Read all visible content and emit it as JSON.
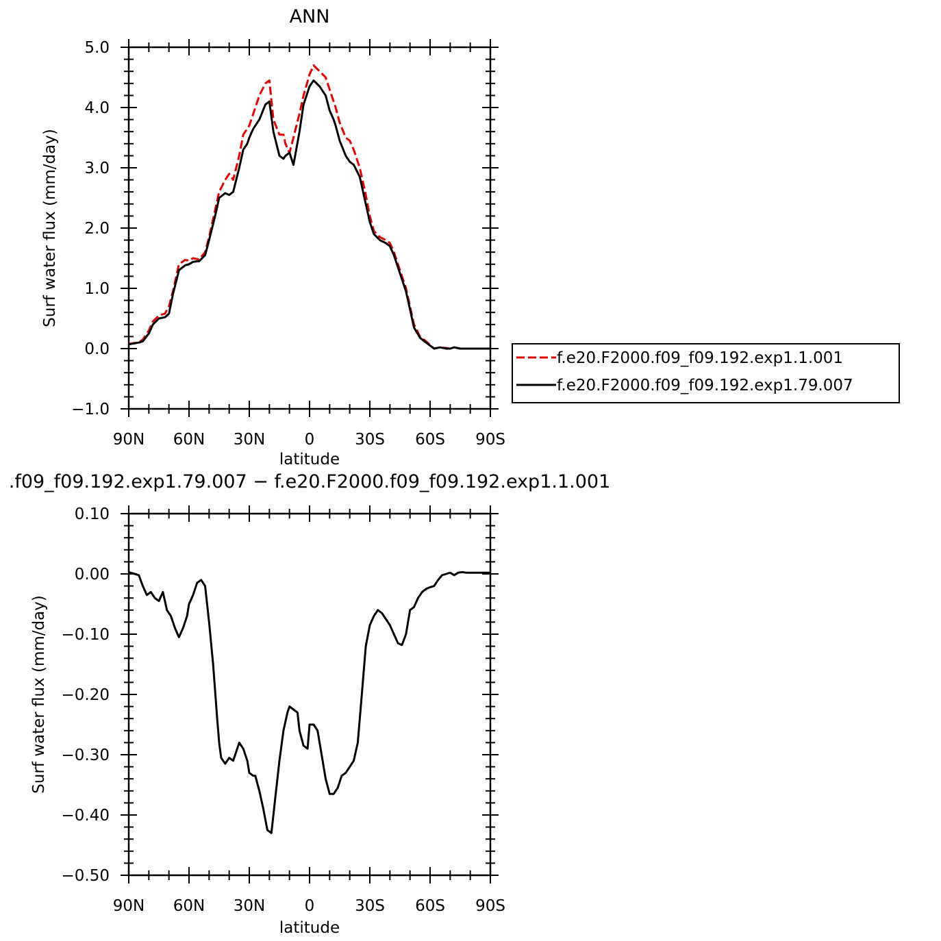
{
  "chart_data": [
    {
      "type": "line",
      "title": "ANN",
      "xlabel": "latitude",
      "ylabel": "Surf water flux (mm/day)",
      "xlim": [
        -90,
        90
      ],
      "ylim": [
        -1.0,
        5.0
      ],
      "x_tick_values": [
        -90,
        -60,
        -30,
        0,
        30,
        60,
        90
      ],
      "x_tick_labels": [
        "90N",
        "60N",
        "30N",
        "0",
        "30S",
        "60S",
        "90S"
      ],
      "y_tick_values": [
        -1.0,
        0.0,
        1.0,
        2.0,
        3.0,
        4.0,
        5.0
      ],
      "y_tick_labels": [
        "−1.0",
        "0.0",
        "1.0",
        "2.0",
        "3.0",
        "4.0",
        "5.0"
      ],
      "legend_position": "right",
      "series": [
        {
          "name": "f.e20.F2000.f09_f09.192.exp1.1.001",
          "color": "#e00000",
          "dash": "dashed",
          "x": [
            -90,
            -85,
            -83,
            -80,
            -78,
            -75,
            -72,
            -70,
            -68,
            -65,
            -62,
            -60,
            -58,
            -55,
            -52,
            -50,
            -47,
            -45,
            -42,
            -40,
            -38,
            -35,
            -33,
            -31,
            -30,
            -28,
            -25,
            -22,
            -20,
            -18,
            -15,
            -13,
            -12,
            -10,
            -8,
            -5,
            -3,
            0,
            2,
            5,
            8,
            10,
            12,
            13,
            15,
            18,
            20,
            22,
            25,
            28,
            30,
            32,
            35,
            38,
            40,
            42,
            45,
            48,
            50,
            52,
            55,
            58,
            60,
            62,
            65,
            68,
            70,
            72,
            75,
            78,
            80,
            82,
            85,
            88,
            90
          ],
          "y": [
            0.08,
            0.1,
            0.15,
            0.3,
            0.45,
            0.55,
            0.58,
            0.7,
            0.95,
            1.4,
            1.47,
            1.46,
            1.5,
            1.48,
            1.6,
            1.85,
            2.3,
            2.6,
            2.8,
            2.9,
            2.8,
            3.2,
            3.55,
            3.65,
            3.7,
            3.9,
            4.2,
            4.4,
            4.45,
            3.8,
            3.55,
            3.55,
            3.4,
            3.25,
            3.5,
            3.9,
            4.2,
            4.55,
            4.7,
            4.6,
            4.5,
            4.3,
            4.1,
            4.0,
            3.75,
            3.5,
            3.45,
            3.3,
            3.0,
            2.55,
            2.2,
            1.95,
            1.85,
            1.8,
            1.75,
            1.6,
            1.3,
            1.0,
            0.7,
            0.4,
            0.2,
            0.12,
            0.06,
            0.0,
            0.02,
            0.01,
            0.0,
            0.02,
            0.0,
            0.0,
            0.0,
            0.0,
            0.0,
            0.0,
            0.0
          ]
        },
        {
          "name": "f.e20.F2000.f09_f09.192.exp1.79.007",
          "color": "#000000",
          "dash": "solid",
          "x": [
            -90,
            -85,
            -83,
            -80,
            -78,
            -75,
            -72,
            -70,
            -68,
            -65,
            -62,
            -60,
            -58,
            -55,
            -52,
            -50,
            -47,
            -45,
            -42,
            -40,
            -38,
            -35,
            -33,
            -31,
            -30,
            -28,
            -25,
            -22,
            -20,
            -18,
            -15,
            -13,
            -12,
            -10,
            -8,
            -5,
            -3,
            0,
            2,
            5,
            8,
            10,
            12,
            13,
            15,
            18,
            20,
            22,
            25,
            28,
            30,
            32,
            35,
            38,
            40,
            42,
            45,
            48,
            50,
            52,
            55,
            58,
            60,
            62,
            65,
            68,
            70,
            72,
            75,
            78,
            80,
            82,
            85,
            88,
            90
          ],
          "y": [
            0.07,
            0.1,
            0.12,
            0.25,
            0.4,
            0.5,
            0.52,
            0.58,
            0.9,
            1.3,
            1.38,
            1.4,
            1.44,
            1.45,
            1.55,
            1.8,
            2.2,
            2.5,
            2.58,
            2.55,
            2.6,
            3.0,
            3.3,
            3.4,
            3.5,
            3.65,
            3.8,
            4.05,
            4.1,
            3.6,
            3.2,
            3.15,
            3.2,
            3.25,
            3.05,
            3.6,
            4.05,
            4.35,
            4.45,
            4.35,
            4.2,
            3.95,
            3.8,
            3.7,
            3.45,
            3.2,
            3.1,
            3.05,
            2.85,
            2.4,
            2.1,
            1.9,
            1.8,
            1.75,
            1.7,
            1.55,
            1.25,
            0.95,
            0.65,
            0.35,
            0.18,
            0.1,
            0.05,
            0.0,
            0.02,
            0.0,
            0.0,
            0.02,
            0.0,
            0.0,
            0.0,
            0.0,
            0.0,
            0.0,
            0.0
          ]
        }
      ]
    },
    {
      "type": "line",
      "title": ".f09_f09.192.exp1.79.007 − f.e20.F2000.f09_f09.192.exp1.1.001",
      "xlabel": "latitude",
      "ylabel": "Surf water flux (mm/day)",
      "xlim": [
        -90,
        90
      ],
      "ylim": [
        -0.5,
        0.1
      ],
      "x_tick_values": [
        -90,
        -60,
        -30,
        0,
        30,
        60,
        90
      ],
      "x_tick_labels": [
        "90N",
        "60N",
        "30N",
        "0",
        "30S",
        "60S",
        "90S"
      ],
      "y_tick_values": [
        -0.5,
        -0.4,
        -0.3,
        -0.2,
        -0.1,
        0.0,
        0.1
      ],
      "y_tick_labels": [
        "−0.50",
        "−0.40",
        "−0.30",
        "−0.20",
        "−0.10",
        "0.00",
        "0.10"
      ],
      "series": [
        {
          "color": "#000000",
          "dash": "solid",
          "x": [
            -90,
            -87,
            -85,
            -83,
            -81,
            -79,
            -77,
            -75,
            -73,
            -71,
            -69,
            -67,
            -65,
            -63,
            -61,
            -60,
            -58,
            -56,
            -54,
            -52,
            -50,
            -48,
            -46,
            -45,
            -44,
            -42,
            -40,
            -38,
            -36,
            -35,
            -33,
            -31,
            -30,
            -28,
            -27,
            -25,
            -23,
            -21,
            -19,
            -17,
            -15,
            -13,
            -11,
            -10,
            -8,
            -6,
            -5,
            -3,
            -1,
            0,
            2,
            4,
            6,
            8,
            10,
            12,
            14,
            16,
            18,
            20,
            22,
            24,
            26,
            28,
            30,
            32,
            34,
            36,
            38,
            40,
            42,
            44,
            46,
            48,
            50,
            52,
            54,
            56,
            58,
            60,
            62,
            64,
            66,
            68,
            70,
            72,
            74,
            76,
            78,
            80,
            82,
            84,
            86,
            88,
            90
          ],
          "y": [
            0.003,
            0.0,
            -0.002,
            -0.02,
            -0.035,
            -0.03,
            -0.04,
            -0.045,
            -0.03,
            -0.06,
            -0.07,
            -0.09,
            -0.105,
            -0.09,
            -0.07,
            -0.05,
            -0.035,
            -0.015,
            -0.01,
            -0.02,
            -0.08,
            -0.15,
            -0.24,
            -0.28,
            -0.305,
            -0.315,
            -0.305,
            -0.31,
            -0.29,
            -0.28,
            -0.29,
            -0.31,
            -0.33,
            -0.335,
            -0.335,
            -0.36,
            -0.39,
            -0.425,
            -0.43,
            -0.37,
            -0.31,
            -0.26,
            -0.23,
            -0.22,
            -0.225,
            -0.23,
            -0.26,
            -0.285,
            -0.29,
            -0.25,
            -0.25,
            -0.26,
            -0.3,
            -0.34,
            -0.365,
            -0.365,
            -0.355,
            -0.335,
            -0.33,
            -0.32,
            -0.31,
            -0.28,
            -0.2,
            -0.12,
            -0.085,
            -0.07,
            -0.06,
            -0.065,
            -0.075,
            -0.085,
            -0.1,
            -0.115,
            -0.118,
            -0.1,
            -0.06,
            -0.055,
            -0.04,
            -0.03,
            -0.025,
            -0.022,
            -0.02,
            -0.01,
            -0.002,
            0.0,
            0.002,
            -0.002,
            0.002,
            0.003,
            0.002,
            0.002,
            0.002,
            0.002,
            0.002,
            0.002,
            0.002
          ]
        }
      ]
    }
  ]
}
